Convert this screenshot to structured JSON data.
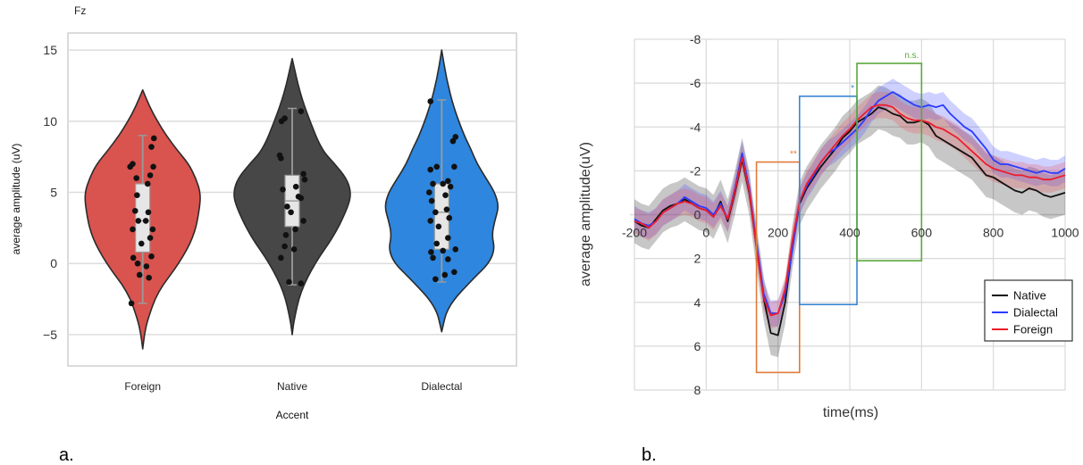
{
  "panel_a_label": "a.",
  "panel_b_label": "b.",
  "chart_data": [
    {
      "type": "violin",
      "title": "Fz",
      "xlabel": "Accent",
      "ylabel": "average amplitude (uV)",
      "ylim": [
        -7.2,
        16.2
      ],
      "yticks": [
        -5,
        0,
        5,
        10,
        15
      ],
      "grid": true,
      "categories": [
        "Foreign",
        "Native",
        "Dialectal"
      ],
      "colors": [
        "#d9534f",
        "#474747",
        "#2e86de"
      ],
      "violins": [
        {
          "min": -6.0,
          "max": 12.2,
          "shape": [
            [
              -6.0,
              0
            ],
            [
              -5,
              0.03
            ],
            [
              -4,
              0.08
            ],
            [
              -2,
              0.25
            ],
            [
              0,
              0.62
            ],
            [
              2,
              0.88
            ],
            [
              4,
              0.97
            ],
            [
              5,
              0.98
            ],
            [
              6,
              0.9
            ],
            [
              7,
              0.78
            ],
            [
              8,
              0.58
            ],
            [
              9,
              0.4
            ],
            [
              10,
              0.25
            ],
            [
              11,
              0.12
            ],
            [
              12.2,
              0
            ]
          ]
        },
        {
          "min": -5.0,
          "max": 14.4,
          "shape": [
            [
              -5.0,
              0
            ],
            [
              -4,
              0.03
            ],
            [
              -2,
              0.14
            ],
            [
              0,
              0.38
            ],
            [
              2,
              0.72
            ],
            [
              4,
              0.95
            ],
            [
              5,
              1.0
            ],
            [
              6,
              0.92
            ],
            [
              7,
              0.72
            ],
            [
              8,
              0.5
            ],
            [
              10,
              0.3
            ],
            [
              12,
              0.13
            ],
            [
              14.4,
              0
            ]
          ]
        },
        {
          "min": -4.8,
          "max": 15.0,
          "shape": [
            [
              -4.8,
              0
            ],
            [
              -3,
              0.1
            ],
            [
              -1,
              0.55
            ],
            [
              0,
              0.8
            ],
            [
              1,
              0.9
            ],
            [
              2,
              0.85
            ],
            [
              3,
              0.9
            ],
            [
              4,
              0.97
            ],
            [
              5,
              0.9
            ],
            [
              6,
              0.75
            ],
            [
              7,
              0.6
            ],
            [
              8,
              0.5
            ],
            [
              9,
              0.38
            ],
            [
              11,
              0.2
            ],
            [
              13,
              0.08
            ],
            [
              15.0,
              0
            ]
          ]
        }
      ],
      "boxes": [
        {
          "whisker_low": -2.8,
          "q1": 0.8,
          "median": 3.0,
          "q3": 5.6,
          "whisker_high": 9.0
        },
        {
          "whisker_low": -1.5,
          "q1": 2.6,
          "median": 4.4,
          "q3": 6.2,
          "whisker_high": 10.9
        },
        {
          "whisker_low": -1.3,
          "q1": 1.0,
          "median": 3.6,
          "q3": 5.6,
          "whisker_high": 11.5
        }
      ],
      "points": [
        [
          [
            -0.18,
            -2.8
          ],
          [
            -0.05,
            -0.8
          ],
          [
            0.1,
            -1.0
          ],
          [
            -0.08,
            0
          ],
          [
            0.06,
            -0.2
          ],
          [
            -0.15,
            0.4
          ],
          [
            0.14,
            0.5
          ],
          [
            -0.02,
            1.4
          ],
          [
            0.12,
            1.8
          ],
          [
            -0.16,
            2.4
          ],
          [
            0.16,
            2.4
          ],
          [
            0.05,
            3.0
          ],
          [
            -0.07,
            3.0
          ],
          [
            0.09,
            3.6
          ],
          [
            -0.12,
            3.7
          ],
          [
            -0.09,
            4.8
          ],
          [
            0.08,
            5.6
          ],
          [
            -0.1,
            6.0
          ],
          [
            0.12,
            6.2
          ],
          [
            -0.2,
            6.8
          ],
          [
            0.17,
            6.8
          ],
          [
            -0.16,
            7.0
          ],
          [
            0.14,
            8.2
          ],
          [
            0.18,
            8.8
          ]
        ],
        [
          [
            -0.05,
            -1.3
          ],
          [
            0.14,
            -1.4
          ],
          [
            -0.18,
            0.4
          ],
          [
            0.03,
            1.0
          ],
          [
            -0.12,
            1.2
          ],
          [
            -0.1,
            2.0
          ],
          [
            0.05,
            2.4
          ],
          [
            0.18,
            3.0
          ],
          [
            -0.02,
            3.6
          ],
          [
            0.14,
            4.6
          ],
          [
            0.1,
            4.7
          ],
          [
            -0.15,
            5.2
          ],
          [
            0.06,
            5.4
          ],
          [
            -0.08,
            4.0
          ],
          [
            0.2,
            5.9
          ],
          [
            0.18,
            6.3
          ],
          [
            -0.18,
            7.4
          ],
          [
            -0.2,
            7.6
          ],
          [
            -0.17,
            10.0
          ],
          [
            -0.12,
            10.2
          ],
          [
            0.14,
            10.7
          ]
        ],
        [
          [
            -0.1,
            -1.1
          ],
          [
            0.05,
            -0.8
          ],
          [
            0.2,
            -0.6
          ],
          [
            -0.14,
            0.4
          ],
          [
            0.1,
            0.3
          ],
          [
            -0.17,
            0.8
          ],
          [
            0.02,
            0.9
          ],
          [
            0.22,
            1.0
          ],
          [
            -0.08,
            1.4
          ],
          [
            0.1,
            1.8
          ],
          [
            -0.05,
            2.6
          ],
          [
            -0.18,
            3.0
          ],
          [
            0.12,
            3.2
          ],
          [
            -0.1,
            3.6
          ],
          [
            0.08,
            3.8
          ],
          [
            -0.16,
            4.4
          ],
          [
            0.06,
            4.8
          ],
          [
            -0.2,
            5.0
          ],
          [
            0.14,
            5.4
          ],
          [
            -0.14,
            5.6
          ],
          [
            0.02,
            5.6
          ],
          [
            0.1,
            5.8
          ],
          [
            -0.18,
            6.6
          ],
          [
            0.2,
            6.8
          ],
          [
            -0.08,
            6.8
          ],
          [
            0.18,
            8.6
          ],
          [
            0.22,
            8.9
          ],
          [
            -0.18,
            11.4
          ]
        ]
      ]
    },
    {
      "type": "line",
      "xlabel": "time(ms)",
      "ylabel": "average amplitude(uV)",
      "xlim": [
        -200,
        1000
      ],
      "ylim": [
        8,
        -8
      ],
      "xticks": [
        -200,
        0,
        200,
        400,
        600,
        800,
        1000
      ],
      "yticks": [
        -8,
        -6,
        -4,
        -2,
        0,
        2,
        4,
        6,
        8
      ],
      "ytick_labels": [
        "-8",
        "-6",
        "-4",
        "-2",
        "0",
        "2",
        "4",
        "6",
        "8"
      ],
      "grid": true,
      "legend_position": "bottom-right",
      "x": [
        -200,
        -180,
        -160,
        -140,
        -120,
        -100,
        -80,
        -60,
        -40,
        -20,
        0,
        20,
        40,
        60,
        80,
        100,
        120,
        140,
        160,
        180,
        200,
        220,
        240,
        260,
        280,
        300,
        320,
        340,
        360,
        380,
        400,
        420,
        440,
        460,
        480,
        500,
        520,
        540,
        560,
        580,
        600,
        620,
        640,
        660,
        680,
        700,
        720,
        740,
        760,
        780,
        800,
        820,
        840,
        860,
        880,
        900,
        920,
        940,
        960,
        980,
        1000
      ],
      "series": [
        {
          "name": "Native",
          "color": "#111111",
          "band": 1.0,
          "values": [
            0.3,
            0.5,
            0.6,
            0.2,
            -0.2,
            -0.4,
            -0.5,
            -0.7,
            -0.5,
            -0.3,
            -0.2,
            0.1,
            -0.6,
            0.3,
            -1.0,
            -2.5,
            -1.0,
            1.5,
            3.8,
            5.4,
            5.5,
            4.0,
            1.5,
            -0.5,
            -1.2,
            -1.7,
            -2.2,
            -2.6,
            -3.0,
            -3.5,
            -3.8,
            -4.2,
            -4.4,
            -4.6,
            -4.9,
            -4.8,
            -4.6,
            -4.5,
            -4.2,
            -4.2,
            -4.3,
            -4.1,
            -3.6,
            -3.4,
            -3.2,
            -3.0,
            -2.8,
            -2.6,
            -2.2,
            -1.8,
            -1.7,
            -1.5,
            -1.3,
            -1.1,
            -1.0,
            -1.2,
            -1.1,
            -0.9,
            -0.8,
            -0.9,
            -1.0
          ]
        },
        {
          "name": "Dialectal",
          "color": "#2b3bff",
          "band": 0.6,
          "values": [
            0.2,
            0.4,
            0.5,
            0.3,
            -0.1,
            -0.3,
            -0.5,
            -0.8,
            -0.6,
            -0.4,
            -0.3,
            0.0,
            -0.5,
            0.2,
            -1.2,
            -2.8,
            -1.2,
            1.3,
            3.6,
            4.5,
            4.5,
            3.6,
            1.6,
            -0.6,
            -1.3,
            -1.8,
            -2.4,
            -2.8,
            -3.0,
            -3.3,
            -3.6,
            -3.9,
            -4.3,
            -4.8,
            -5.2,
            -5.4,
            -5.6,
            -5.4,
            -5.2,
            -5.0,
            -4.9,
            -5.0,
            -4.9,
            -5.0,
            -4.6,
            -4.3,
            -4.0,
            -3.8,
            -3.4,
            -3.0,
            -2.5,
            -2.3,
            -2.3,
            -2.2,
            -2.1,
            -2.0,
            -1.9,
            -2.0,
            -1.9,
            -1.9,
            -2.1
          ]
        },
        {
          "name": "Foreign",
          "color": "#ee1c2c",
          "band": 0.6,
          "values": [
            0.3,
            0.4,
            0.6,
            0.3,
            -0.1,
            -0.3,
            -0.5,
            -0.6,
            -0.5,
            -0.3,
            -0.2,
            0.1,
            -0.4,
            0.2,
            -1.1,
            -2.6,
            -1.1,
            1.5,
            3.8,
            4.6,
            4.5,
            3.4,
            1.2,
            -0.6,
            -1.4,
            -1.9,
            -2.4,
            -2.8,
            -3.2,
            -3.6,
            -3.9,
            -4.3,
            -4.6,
            -4.9,
            -5.0,
            -5.0,
            -4.9,
            -4.6,
            -4.4,
            -4.3,
            -4.3,
            -4.2,
            -4.0,
            -3.9,
            -3.7,
            -3.5,
            -3.2,
            -2.9,
            -2.6,
            -2.3,
            -2.1,
            -2.0,
            -1.9,
            -1.8,
            -1.8,
            -1.7,
            -1.7,
            -1.6,
            -1.6,
            -1.7,
            -1.8
          ]
        }
      ],
      "windows": [
        {
          "x0": 140,
          "x1": 260,
          "y0": -2.4,
          "y1": 7.2,
          "color": "#e07b39",
          "label": "**"
        },
        {
          "x0": 260,
          "x1": 420,
          "y0": -5.4,
          "y1": 4.1,
          "color": "#3a86d1",
          "label": "*"
        },
        {
          "x0": 420,
          "x1": 600,
          "y0": -6.9,
          "y1": 2.1,
          "color": "#5aa83c",
          "label": "n.s."
        }
      ]
    }
  ]
}
